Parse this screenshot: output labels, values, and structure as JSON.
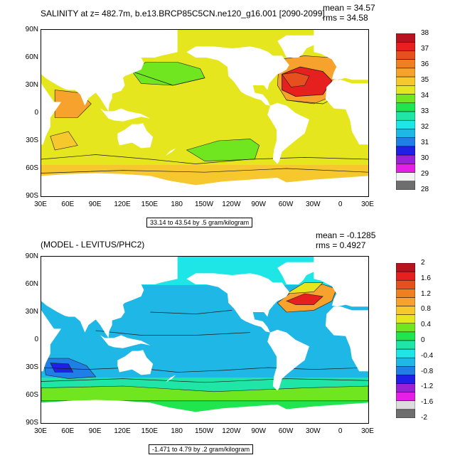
{
  "colors": {
    "salinity": [
      "#6e6e6e",
      "#f3f3f3",
      "#e61fe6",
      "#9a21d8",
      "#1f1fe6",
      "#1f7fe6",
      "#1fb8e6",
      "#1fe6e6",
      "#1fe6a6",
      "#1fe64f",
      "#6fe61f",
      "#e6e61f",
      "#f6c82d",
      "#f6a22d",
      "#f07f1f",
      "#e6501f",
      "#e61f1f",
      "#b8141f"
    ],
    "diff": [
      "#6e6e6e",
      "#dcdcdc",
      "#e61fe6",
      "#9a21d8",
      "#1f1fe6",
      "#1f7fe6",
      "#1fb8e6",
      "#1fe6e6",
      "#1fe6a6",
      "#1fe64f",
      "#6fe61f",
      "#e6e61f",
      "#f6c82d",
      "#f6a22d",
      "#f07f1f",
      "#e6501f",
      "#e61f1f",
      "#b8141f"
    ],
    "land": "#ffffff",
    "contour": "#1a1a1a"
  },
  "chart_data": [
    {
      "type": "heatmap",
      "title": "SALINITY at z= 482.7m, b.e13.BRCP85C5CN.ne120_g16.001 [2090-2099]",
      "stats": {
        "mean": "mean = 34.57",
        "rms": "rms = 34.58"
      },
      "y_tick_labels": [
        "90N",
        "60N",
        "30N",
        "0",
        "30S",
        "60S",
        "90S"
      ],
      "x_tick_labels": [
        "30E",
        "60E",
        "90E",
        "120E",
        "150E",
        "180",
        "150W",
        "120W",
        "90W",
        "60W",
        "30W",
        "0",
        "30E"
      ],
      "xlim": [
        30,
        390
      ],
      "ylim": [
        -90,
        90
      ],
      "range_note": "33.14 to 43.54 by .5 gram/kilogram",
      "colorbar_labels": [
        "38",
        "37",
        "36",
        "35",
        "34",
        "33",
        "32",
        "31",
        "30",
        "29",
        "28"
      ],
      "dominant_value_range": [
        33,
        38
      ]
    },
    {
      "type": "heatmap",
      "title": "(MODEL - LEVITUS/PHC2)",
      "stats": {
        "mean": "mean = -0.1285",
        "rms": "rms = 0.4927"
      },
      "y_tick_labels": [
        "90N",
        "60N",
        "30N",
        "0",
        "30S",
        "60S",
        "90S"
      ],
      "x_tick_labels": [
        "30E",
        "60E",
        "90E",
        "120E",
        "150E",
        "180",
        "150W",
        "120W",
        "90W",
        "60W",
        "30W",
        "0",
        "30E"
      ],
      "xlim": [
        30,
        390
      ],
      "ylim": [
        -90,
        90
      ],
      "range_note": "-1.471 to 4.79 by .2 gram/kilogram",
      "colorbar_labels": [
        "2",
        "1.6",
        "1.2",
        "0.8",
        "0.4",
        "0",
        "-0.4",
        "-0.8",
        "-1.2",
        "-1.6",
        "-2"
      ],
      "dominant_value_range": [
        -0.8,
        2
      ]
    }
  ]
}
